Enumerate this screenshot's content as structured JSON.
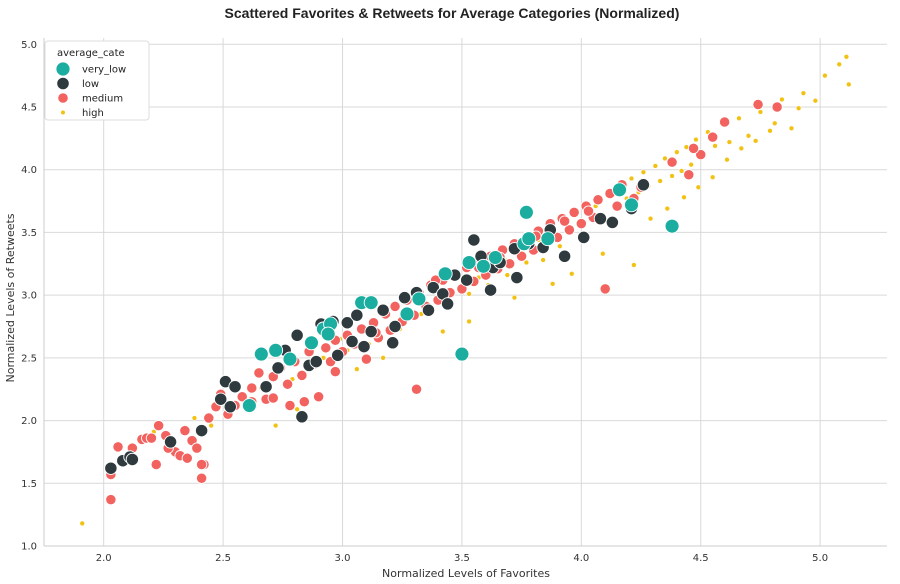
{
  "chart_data": {
    "type": "scatter",
    "title": "Scattered Favorites & Retweets for Average Categories (Normalized)",
    "xlabel": "Normalized Levels of Favorites",
    "ylabel": "Normalized Levels of Retweets",
    "xlim": [
      1.75,
      5.28
    ],
    "ylim": [
      1.0,
      5.05
    ],
    "xticks": [
      "2.0",
      "2.5",
      "3.0",
      "3.5",
      "4.0",
      "4.5",
      "5.0"
    ],
    "yticks": [
      "1.0",
      "1.5",
      "2.0",
      "2.5",
      "3.0",
      "3.5",
      "4.0",
      "4.5",
      "5.0"
    ],
    "grid": true,
    "legend": {
      "title": "average_cate",
      "placement": "top-left"
    },
    "series": [
      {
        "name": "very_low",
        "color": "#1aada0",
        "points": [
          [
            2.61,
            2.12
          ],
          [
            2.66,
            2.53
          ],
          [
            2.72,
            2.56
          ],
          [
            2.78,
            2.49
          ],
          [
            2.87,
            2.62
          ],
          [
            2.92,
            2.73
          ],
          [
            2.95,
            2.77
          ],
          [
            3.08,
            2.94
          ],
          [
            3.12,
            2.94
          ],
          [
            3.27,
            2.85
          ],
          [
            3.32,
            2.97
          ],
          [
            3.43,
            3.17
          ],
          [
            3.5,
            2.53
          ],
          [
            3.53,
            3.26
          ],
          [
            3.64,
            3.3
          ],
          [
            3.76,
            3.41
          ],
          [
            3.77,
            3.66
          ],
          [
            3.78,
            3.45
          ],
          [
            3.86,
            3.45
          ],
          [
            4.16,
            3.84
          ],
          [
            4.21,
            3.72
          ],
          [
            4.38,
            3.55
          ],
          [
            2.94,
            2.69
          ],
          [
            3.59,
            3.23
          ]
        ]
      },
      {
        "name": "low",
        "color": "#2f3a3e",
        "points": [
          [
            2.03,
            1.62
          ],
          [
            2.08,
            1.68
          ],
          [
            2.11,
            1.71
          ],
          [
            2.12,
            1.69
          ],
          [
            2.28,
            1.83
          ],
          [
            2.41,
            1.92
          ],
          [
            2.49,
            2.17
          ],
          [
            2.51,
            2.31
          ],
          [
            2.53,
            2.11
          ],
          [
            2.55,
            2.27
          ],
          [
            2.61,
            2.12
          ],
          [
            2.68,
            2.27
          ],
          [
            2.76,
            2.56
          ],
          [
            2.81,
            2.68
          ],
          [
            2.83,
            2.03
          ],
          [
            2.86,
            2.44
          ],
          [
            2.91,
            2.77
          ],
          [
            2.96,
            2.79
          ],
          [
            3.02,
            2.78
          ],
          [
            3.04,
            2.63
          ],
          [
            3.06,
            2.84
          ],
          [
            3.12,
            2.71
          ],
          [
            3.17,
            2.88
          ],
          [
            3.22,
            2.75
          ],
          [
            3.26,
            2.98
          ],
          [
            3.31,
            3.02
          ],
          [
            3.38,
            3.06
          ],
          [
            3.42,
            3.01
          ],
          [
            3.47,
            3.16
          ],
          [
            3.52,
            3.12
          ],
          [
            3.55,
            3.44
          ],
          [
            3.58,
            3.31
          ],
          [
            3.63,
            3.22
          ],
          [
            3.66,
            3.26
          ],
          [
            3.72,
            3.37
          ],
          [
            3.78,
            3.41
          ],
          [
            3.84,
            3.38
          ],
          [
            3.87,
            3.52
          ],
          [
            3.93,
            3.31
          ],
          [
            4.01,
            3.46
          ],
          [
            4.08,
            3.61
          ],
          [
            4.13,
            3.58
          ],
          [
            4.21,
            3.69
          ],
          [
            4.26,
            3.88
          ],
          [
            2.98,
            2.52
          ],
          [
            2.89,
            2.47
          ],
          [
            3.21,
            2.62
          ],
          [
            3.36,
            2.88
          ],
          [
            3.44,
            2.93
          ],
          [
            3.62,
            3.04
          ],
          [
            3.73,
            3.14
          ],
          [
            2.73,
            2.42
          ],
          [
            3.09,
            2.59
          ]
        ]
      },
      {
        "name": "medium",
        "color": "#f26360",
        "points": [
          [
            2.03,
            1.57
          ],
          [
            2.03,
            1.37
          ],
          [
            2.06,
            1.79
          ],
          [
            2.12,
            1.78
          ],
          [
            2.16,
            1.85
          ],
          [
            2.18,
            1.86
          ],
          [
            2.22,
            1.65
          ],
          [
            2.23,
            1.96
          ],
          [
            2.26,
            1.88
          ],
          [
            2.3,
            1.75
          ],
          [
            2.32,
            1.72
          ],
          [
            2.34,
            1.92
          ],
          [
            2.37,
            1.84
          ],
          [
            2.39,
            1.78
          ],
          [
            2.41,
            1.54
          ],
          [
            2.42,
            1.65
          ],
          [
            2.44,
            2.02
          ],
          [
            2.47,
            2.11
          ],
          [
            2.49,
            2.21
          ],
          [
            2.52,
            2.05
          ],
          [
            2.55,
            2.12
          ],
          [
            2.58,
            2.19
          ],
          [
            2.62,
            2.26
          ],
          [
            2.65,
            2.38
          ],
          [
            2.68,
            2.17
          ],
          [
            2.71,
            2.35
          ],
          [
            2.74,
            2.42
          ],
          [
            2.77,
            2.29
          ],
          [
            2.8,
            2.47
          ],
          [
            2.83,
            2.36
          ],
          [
            2.86,
            2.55
          ],
          [
            2.88,
            2.45
          ],
          [
            2.9,
            2.19
          ],
          [
            2.93,
            2.58
          ],
          [
            2.95,
            2.47
          ],
          [
            2.97,
            2.64
          ],
          [
            3.0,
            2.55
          ],
          [
            3.02,
            2.68
          ],
          [
            3.05,
            2.61
          ],
          [
            3.08,
            2.73
          ],
          [
            3.1,
            2.49
          ],
          [
            3.13,
            2.78
          ],
          [
            3.15,
            2.66
          ],
          [
            3.18,
            2.85
          ],
          [
            3.2,
            2.72
          ],
          [
            3.22,
            2.91
          ],
          [
            3.25,
            2.79
          ],
          [
            3.27,
            2.96
          ],
          [
            3.3,
            2.84
          ],
          [
            3.32,
            3.02
          ],
          [
            3.35,
            2.91
          ],
          [
            3.37,
            3.08
          ],
          [
            3.4,
            2.96
          ],
          [
            3.42,
            3.12
          ],
          [
            3.45,
            3.02
          ],
          [
            3.47,
            3.17
          ],
          [
            3.5,
            3.05
          ],
          [
            3.52,
            3.22
          ],
          [
            3.55,
            3.11
          ],
          [
            3.57,
            3.27
          ],
          [
            3.6,
            3.16
          ],
          [
            3.62,
            3.31
          ],
          [
            3.65,
            3.21
          ],
          [
            3.67,
            3.36
          ],
          [
            3.7,
            3.25
          ],
          [
            3.72,
            3.41
          ],
          [
            3.75,
            3.31
          ],
          [
            3.77,
            3.46
          ],
          [
            3.8,
            3.36
          ],
          [
            3.82,
            3.51
          ],
          [
            3.85,
            3.41
          ],
          [
            3.87,
            3.57
          ],
          [
            3.9,
            3.46
          ],
          [
            3.92,
            3.61
          ],
          [
            3.95,
            3.52
          ],
          [
            3.97,
            3.66
          ],
          [
            4.0,
            3.57
          ],
          [
            4.02,
            3.71
          ],
          [
            4.05,
            3.62
          ],
          [
            4.07,
            3.76
          ],
          [
            4.1,
            3.05
          ],
          [
            4.12,
            3.81
          ],
          [
            4.15,
            3.71
          ],
          [
            4.17,
            3.88
          ],
          [
            4.22,
            3.77
          ],
          [
            4.25,
            3.86
          ],
          [
            4.45,
            3.96
          ],
          [
            4.5,
            4.12
          ],
          [
            4.55,
            4.26
          ],
          [
            4.6,
            4.38
          ],
          [
            4.74,
            4.52
          ],
          [
            4.82,
            4.5
          ],
          [
            4.47,
            4.17
          ],
          [
            4.38,
            4.06
          ],
          [
            3.31,
            2.25
          ],
          [
            2.97,
            2.39
          ],
          [
            2.84,
            2.15
          ],
          [
            2.78,
            2.12
          ],
          [
            2.71,
            2.18
          ],
          [
            2.62,
            2.15
          ],
          [
            2.41,
            1.65
          ],
          [
            2.35,
            1.7
          ],
          [
            2.2,
            1.86
          ],
          [
            2.27,
            1.78
          ],
          [
            3.14,
            2.7
          ],
          [
            3.39,
            3.12
          ],
          [
            3.57,
            3.22
          ],
          [
            3.66,
            3.3
          ],
          [
            3.81,
            3.47
          ],
          [
            3.93,
            3.59
          ],
          [
            4.03,
            3.67
          ]
        ]
      },
      {
        "name": "high",
        "color": "#f2c213",
        "points": [
          [
            1.91,
            1.18
          ],
          [
            2.21,
            1.91
          ],
          [
            2.38,
            2.02
          ],
          [
            2.45,
            1.96
          ],
          [
            2.53,
            2.12
          ],
          [
            2.66,
            2.26
          ],
          [
            2.79,
            2.33
          ],
          [
            2.92,
            2.5
          ],
          [
            3.02,
            2.56
          ],
          [
            3.11,
            2.61
          ],
          [
            3.24,
            2.73
          ],
          [
            3.33,
            2.85
          ],
          [
            3.44,
            2.95
          ],
          [
            3.53,
            3.01
          ],
          [
            3.61,
            3.08
          ],
          [
            3.69,
            3.16
          ],
          [
            3.77,
            3.26
          ],
          [
            3.84,
            3.28
          ],
          [
            3.91,
            3.39
          ],
          [
            3.96,
            3.52
          ],
          [
            4.01,
            3.49
          ],
          [
            4.04,
            3.6
          ],
          [
            4.06,
            3.71
          ],
          [
            4.09,
            3.64
          ],
          [
            4.11,
            3.83
          ],
          [
            4.14,
            3.72
          ],
          [
            4.16,
            3.86
          ],
          [
            4.19,
            3.77
          ],
          [
            4.21,
            3.93
          ],
          [
            4.24,
            3.82
          ],
          [
            4.26,
            3.98
          ],
          [
            4.28,
            3.87
          ],
          [
            4.31,
            4.03
          ],
          [
            4.33,
            3.91
          ],
          [
            4.35,
            4.09
          ],
          [
            4.38,
            3.95
          ],
          [
            4.4,
            4.14
          ],
          [
            4.42,
            3.99
          ],
          [
            4.44,
            4.18
          ],
          [
            4.46,
            4.04
          ],
          [
            4.48,
            4.24
          ],
          [
            4.51,
            4.11
          ],
          [
            4.53,
            4.3
          ],
          [
            4.56,
            4.19
          ],
          [
            4.59,
            4.36
          ],
          [
            4.62,
            4.22
          ],
          [
            4.66,
            4.41
          ],
          [
            4.7,
            4.27
          ],
          [
            4.75,
            4.46
          ],
          [
            4.79,
            4.31
          ],
          [
            4.84,
            4.56
          ],
          [
            4.88,
            4.33
          ],
          [
            4.93,
            4.61
          ],
          [
            4.98,
            4.55
          ],
          [
            5.02,
            4.75
          ],
          [
            5.08,
            4.84
          ],
          [
            5.11,
            4.9
          ],
          [
            5.12,
            4.68
          ],
          [
            4.22,
            3.24
          ],
          [
            4.09,
            3.33
          ],
          [
            3.96,
            3.17
          ],
          [
            3.88,
            3.09
          ],
          [
            3.72,
            2.98
          ],
          [
            3.53,
            2.79
          ],
          [
            3.42,
            2.71
          ],
          [
            3.17,
            2.5
          ],
          [
            3.06,
            2.41
          ],
          [
            2.89,
            2.18
          ],
          [
            2.81,
            2.09
          ],
          [
            2.72,
            1.96
          ],
          [
            4.61,
            4.08
          ],
          [
            4.55,
            3.94
          ],
          [
            4.49,
            3.86
          ],
          [
            4.43,
            3.78
          ],
          [
            4.36,
            3.69
          ],
          [
            4.29,
            3.61
          ],
          [
            4.67,
            4.17
          ],
          [
            4.73,
            4.23
          ],
          [
            4.81,
            4.37
          ],
          [
            4.91,
            4.49
          ],
          [
            3.82,
            3.44
          ],
          [
            3.68,
            3.28
          ],
          [
            3.57,
            3.14
          ],
          [
            3.34,
            2.93
          ],
          [
            3.19,
            2.74
          ],
          [
            2.99,
            2.65
          ]
        ]
      }
    ]
  }
}
